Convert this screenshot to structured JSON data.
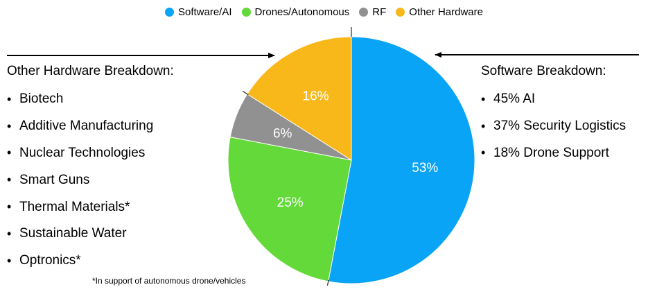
{
  "chart_data": {
    "type": "pie",
    "categories": [
      "Software/AI",
      "Drones/Autonomous",
      "RF",
      "Other Hardware"
    ],
    "values": [
      53,
      25,
      6,
      16
    ],
    "labels": [
      "53%",
      "25%",
      "6%",
      "16%"
    ],
    "colors": [
      "#0aa4f7",
      "#64d93a",
      "#919191",
      "#f9b81a"
    ],
    "legend_position": "top-center"
  },
  "left_breakdown": {
    "title": "Other Hardware Breakdown:",
    "items": [
      "Biotech",
      "Additive Manufacturing",
      "Nuclear Technologies",
      "Smart Guns",
      "Thermal Materials*",
      "Sustainable Water",
      "Optronics*"
    ]
  },
  "right_breakdown": {
    "title": "Software Breakdown:",
    "items": [
      "45% AI",
      "37% Security Logistics",
      "18% Drone Support"
    ]
  },
  "footnote": "*In support of autonomous drone/vehicles",
  "bullet": "•"
}
